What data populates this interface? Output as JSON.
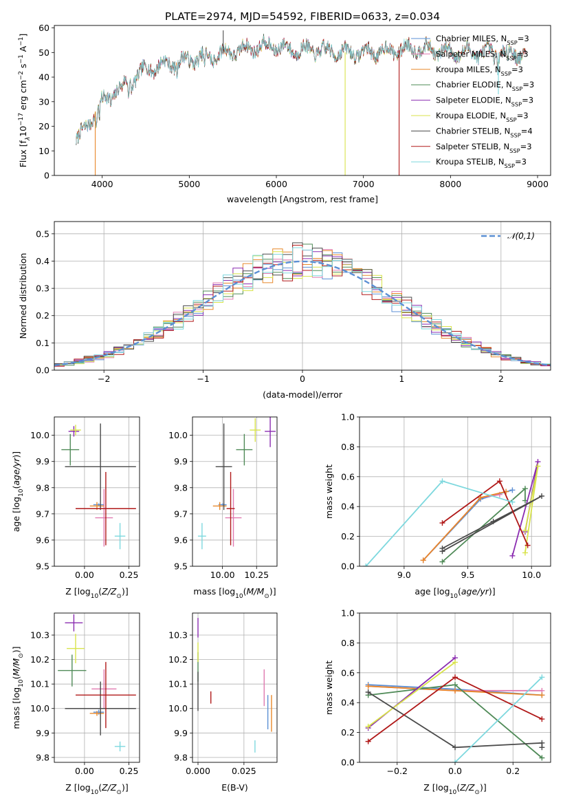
{
  "colors": {
    "Chabrier MILES": "#5b8fd4",
    "Salpeter MILES": "#e07ab0",
    "Kroupa MILES": "#e8882a",
    "Chabrier ELODIE": "#4f8a57",
    "Salpeter ELODIE": "#8a2bb0",
    "Kroupa ELODIE": "#d8e34a",
    "Chabrier STELIB": "#4a4a4a",
    "Salpeter STELIB": "#b01818",
    "Kroupa STELIB": "#7dd8de",
    "gauss": "#5b8fd4"
  },
  "chart_data": [
    {
      "id": "spectrum",
      "type": "line",
      "title": "PLATE=2974, MJD=54592, FIBERID=0633, z=0.034",
      "xlabel": "wavelength [Angstrom, rest frame]",
      "ylabel": "Flux [f_λ 10⁻¹⁷ erg cm⁻² s⁻¹ A⁻¹]",
      "xlim": [
        3450,
        9150
      ],
      "ylim": [
        0,
        61
      ],
      "xticks": [
        "4000",
        "5000",
        "6000",
        "7000",
        "8000",
        "9000"
      ],
      "yticks": [
        "0",
        "10",
        "20",
        "30",
        "40",
        "50",
        "60"
      ],
      "legend_position": "upper-right",
      "legend": [
        "Chabrier MILES, N$_{SSP}$=3",
        "Salpeter MILES, N$_{SSP}$=3",
        "Kroupa MILES, N$_{SSP}$=3",
        "Chabrier ELODIE, N$_{SSP}$=3",
        "Salpeter ELODIE, N$_{SSP}$=3",
        "Kroupa ELODIE, N$_{SSP}$=3",
        "Chabrier STELIB, N$_{SSP}$=4",
        "Salpeter STELIB, N$_{SSP}$=3",
        "Kroupa STELIB, N$_{SSP}$=3"
      ],
      "legend_series": [
        "Chabrier MILES",
        "Salpeter MILES",
        "Kroupa MILES",
        "Chabrier ELODIE",
        "Salpeter ELODIE",
        "Kroupa ELODIE",
        "Chabrier STELIB",
        "Salpeter STELIB",
        "Kroupa STELIB"
      ],
      "continuum": [
        [
          3700,
          15
        ],
        [
          3800,
          18
        ],
        [
          3950,
          28
        ],
        [
          4100,
          33
        ],
        [
          4300,
          38
        ],
        [
          4500,
          43
        ],
        [
          4700,
          45
        ],
        [
          5000,
          47
        ],
        [
          5300,
          49
        ],
        [
          5600,
          51
        ],
        [
          5900,
          53
        ],
        [
          6200,
          51
        ],
        [
          6500,
          51
        ],
        [
          6800,
          50
        ],
        [
          7100,
          50
        ],
        [
          7400,
          51
        ],
        [
          7600,
          52
        ],
        [
          7800,
          51
        ],
        [
          8100,
          50
        ],
        [
          8400,
          50
        ],
        [
          8700,
          50
        ],
        [
          8870,
          49
        ]
      ],
      "features": [
        [
          3933,
          -6
        ],
        [
          3968,
          -5
        ],
        [
          4101,
          -3
        ],
        [
          4226,
          -3
        ],
        [
          4304,
          -5
        ],
        [
          4340,
          -3
        ],
        [
          4861,
          -4
        ],
        [
          5175,
          -6
        ],
        [
          5270,
          -3
        ],
        [
          5890,
          -4
        ],
        [
          6563,
          -3
        ],
        [
          8498,
          -3
        ],
        [
          8542,
          -4
        ],
        [
          8662,
          -4
        ]
      ],
      "spikes": [
        {
          "series": "Chabrier STELIB",
          "x": 5390,
          "y": 59
        },
        {
          "series": "Kroupa MILES",
          "x": 3920,
          "y": 0
        },
        {
          "series": "Kroupa ELODIE",
          "x": 6790,
          "y": 0
        },
        {
          "series": "Salpeter STELIB",
          "x": 7410,
          "y": 0
        },
        {
          "series": "Kroupa STELIB",
          "x": 8550,
          "y": 33
        }
      ],
      "series": [
        "Chabrier MILES",
        "Salpeter MILES",
        "Kroupa MILES",
        "Chabrier ELODIE",
        "Salpeter ELODIE",
        "Kroupa ELODIE",
        "Chabrier STELIB",
        "Salpeter STELIB",
        "Kroupa STELIB"
      ]
    },
    {
      "id": "residuals",
      "type": "histogram",
      "xlabel": "(data-model)/error",
      "ylabel": "Normed distribution",
      "xlim": [
        -2.5,
        2.5
      ],
      "ylim": [
        0,
        0.545
      ],
      "xticks": [
        "-2",
        "-1",
        "0",
        "1",
        "2"
      ],
      "yticks": [
        "0.0",
        "0.1",
        "0.2",
        "0.3",
        "0.4",
        "0.5"
      ],
      "legend_position": "upper-right",
      "legend": [
        "$\\mathcal{N}(0,1)$"
      ],
      "bin_width": 0.1,
      "gaussian": {
        "mean": 0,
        "sigma": 1,
        "style": "dashed"
      },
      "series": [
        "Chabrier MILES",
        "Salpeter MILES",
        "Kroupa MILES",
        "Chabrier ELODIE",
        "Salpeter ELODIE",
        "Kroupa ELODIE",
        "Chabrier STELIB",
        "Salpeter STELIB",
        "Kroupa STELIB"
      ]
    },
    {
      "id": "age_vs_Z",
      "type": "errorbar",
      "xlabel": "Z [log$_{10}$($Z/Z_\\odot$)]",
      "ylabel": "age  [log$_{10}$($age/yr$)]",
      "xlim": [
        -0.17,
        0.31
      ],
      "ylim": [
        9.5,
        10.07
      ],
      "xticks": [
        "0.00",
        "0.25"
      ],
      "yticks": [
        "9.5",
        "9.6",
        "9.7",
        "9.8",
        "9.9",
        "10.0"
      ],
      "points": [
        {
          "series": "Chabrier MILES",
          "x": 0.08,
          "xerr": 0.03,
          "y": 9.735,
          "yerr": 0.005
        },
        {
          "series": "Salpeter MILES",
          "x": 0.11,
          "xerr": 0.05,
          "y": 9.685,
          "yerr": 0.11
        },
        {
          "series": "Kroupa MILES",
          "x": 0.07,
          "xerr": 0.04,
          "y": 9.73,
          "yerr": 0.015
        },
        {
          "series": "Chabrier ELODIE",
          "x": -0.08,
          "xerr": 0.05,
          "y": 9.945,
          "yerr": 0.06
        },
        {
          "series": "Salpeter ELODIE",
          "x": -0.06,
          "xerr": 0.03,
          "y": 10.015,
          "yerr": 0.02
        },
        {
          "series": "Kroupa ELODIE",
          "x": -0.05,
          "xerr": 0.03,
          "y": 10.02,
          "yerr": 0.02
        },
        {
          "series": "Chabrier STELIB",
          "x": 0.09,
          "xerr": 0.2,
          "y": 9.88,
          "yerr": 0.165
        },
        {
          "series": "Salpeter STELIB",
          "x": 0.12,
          "xerr": 0.17,
          "y": 9.72,
          "yerr": 0.14
        },
        {
          "series": "Kroupa STELIB",
          "x": 0.2,
          "xerr": 0.03,
          "y": 9.615,
          "yerr": 0.05
        }
      ]
    },
    {
      "id": "age_vs_mass",
      "type": "errorbar",
      "xlabel": "mass [log$_{10}$($M/M_\\odot$)]",
      "ylabel": "",
      "xlim": [
        9.78,
        10.4
      ],
      "ylim": [
        9.5,
        10.07
      ],
      "xticks": [
        "10.00",
        "10.25"
      ],
      "yticks": [
        "9.5",
        "9.6",
        "9.7",
        "9.8",
        "9.9",
        "10.0"
      ],
      "points": [
        {
          "series": "Chabrier MILES",
          "x": 10.0,
          "xerr": 0.03,
          "y": 9.735,
          "yerr": 0.005
        },
        {
          "series": "Salpeter MILES",
          "x": 10.08,
          "xerr": 0.06,
          "y": 9.685,
          "yerr": 0.11
        },
        {
          "series": "Kroupa MILES",
          "x": 9.98,
          "xerr": 0.05,
          "y": 9.73,
          "yerr": 0.015
        },
        {
          "series": "Chabrier ELODIE",
          "x": 10.16,
          "xerr": 0.06,
          "y": 9.945,
          "yerr": 0.06
        },
        {
          "series": "Salpeter ELODIE",
          "x": 10.35,
          "xerr": 0.04,
          "y": 10.015,
          "yerr": 0.06
        },
        {
          "series": "Kroupa ELODIE",
          "x": 10.24,
          "xerr": 0.04,
          "y": 10.02,
          "yerr": 0.045
        },
        {
          "series": "Chabrier STELIB",
          "x": 10.01,
          "xerr": 0.06,
          "y": 9.88,
          "yerr": 0.165
        },
        {
          "series": "Salpeter STELIB",
          "x": 10.06,
          "xerr": 0.03,
          "y": 9.72,
          "yerr": 0.14
        },
        {
          "series": "Kroupa STELIB",
          "x": 9.85,
          "xerr": 0.03,
          "y": 9.615,
          "yerr": 0.05
        }
      ]
    },
    {
      "id": "weight_vs_age",
      "type": "line",
      "xlabel": "age  [log$_{10}$($age/yr$)]",
      "ylabel": "mass weight",
      "xlim": [
        8.65,
        10.15
      ],
      "ylim": [
        0,
        1
      ],
      "xticks": [
        "9.0",
        "9.5",
        "10.0"
      ],
      "yticks": [
        "0.0",
        "0.2",
        "0.4",
        "0.6",
        "0.8",
        "1.0"
      ],
      "markers": "plus",
      "series": [
        {
          "name": "Chabrier MILES",
          "x": [
            9.15,
            9.6,
            9.85
          ],
          "y": [
            0.04,
            0.45,
            0.51
          ]
        },
        {
          "name": "Salpeter MILES",
          "x": [
            9.15,
            9.6,
            9.75
          ],
          "y": [
            0.04,
            0.46,
            0.48
          ]
        },
        {
          "name": "Kroupa MILES",
          "x": [
            9.15,
            9.6,
            9.8
          ],
          "y": [
            0.04,
            0.46,
            0.5
          ]
        },
        {
          "name": "Chabrier ELODIE",
          "x": [
            9.3,
            9.95,
            9.95
          ],
          "y": [
            0.03,
            0.52,
            0.44
          ]
        },
        {
          "name": "Salpeter ELODIE",
          "x": [
            9.85,
            10.05,
            9.95
          ],
          "y": [
            0.07,
            0.7,
            0.23
          ]
        },
        {
          "name": "Kroupa ELODIE",
          "x": [
            9.95,
            10.05,
            9.95
          ],
          "y": [
            0.09,
            0.67,
            0.24
          ]
        },
        {
          "name": "Chabrier STELIB",
          "x": [
            9.3,
            9.7,
            10.08,
            9.3
          ],
          "y": [
            0.12,
            0.3,
            0.47,
            0.1
          ]
        },
        {
          "name": "Salpeter STELIB",
          "x": [
            9.3,
            9.75,
            9.97
          ],
          "y": [
            0.29,
            0.57,
            0.14
          ]
        },
        {
          "name": "Kroupa STELIB",
          "x": [
            8.7,
            9.3,
            9.85
          ],
          "y": [
            0.0,
            0.57,
            0.43
          ]
        }
      ]
    },
    {
      "id": "mass_vs_Z",
      "type": "errorbar",
      "xlabel": "Z [log$_{10}$($Z/Z_\\odot$)]",
      "ylabel": "mass [log$_{10}$($M/M_\\odot$)]",
      "xlim": [
        -0.17,
        0.31
      ],
      "ylim": [
        9.78,
        10.39
      ],
      "xticks": [
        "0.00",
        "0.25"
      ],
      "yticks": [
        "9.8",
        "9.9",
        "10.0",
        "10.1",
        "10.2",
        "10.3"
      ],
      "points": [
        {
          "series": "Chabrier MILES",
          "x": 0.08,
          "xerr": 0.03,
          "y": 9.985,
          "yerr": 0.01
        },
        {
          "series": "Salpeter MILES",
          "x": 0.11,
          "xerr": 0.07,
          "y": 10.08,
          "yerr": 0.08
        },
        {
          "series": "Kroupa MILES",
          "x": 0.07,
          "xerr": 0.04,
          "y": 9.98,
          "yerr": 0.01
        },
        {
          "series": "Chabrier ELODIE",
          "x": -0.07,
          "xerr": 0.08,
          "y": 10.155,
          "yerr": 0.065
        },
        {
          "series": "Salpeter ELODIE",
          "x": -0.06,
          "xerr": 0.05,
          "y": 10.35,
          "yerr": 0.035
        },
        {
          "series": "Kroupa ELODIE",
          "x": -0.05,
          "xerr": 0.05,
          "y": 10.245,
          "yerr": 0.06
        },
        {
          "series": "Chabrier STELIB",
          "x": 0.09,
          "xerr": 0.2,
          "y": 10.0,
          "yerr": 0.11
        },
        {
          "series": "Salpeter STELIB",
          "x": 0.12,
          "xerr": 0.17,
          "y": 10.055,
          "yerr": 0.135
        },
        {
          "series": "Kroupa STELIB",
          "x": 0.2,
          "xerr": 0.03,
          "y": 9.845,
          "yerr": 0.02
        }
      ]
    },
    {
      "id": "mass_vs_ebv",
      "type": "errorbar",
      "xlabel": "E(B-V)",
      "ylabel": "",
      "xlim": [
        -0.003,
        0.043
      ],
      "ylim": [
        9.78,
        10.39
      ],
      "xticks": [
        "0.000",
        "0.025"
      ],
      "yticks": [
        "9.8",
        "9.9",
        "10.0",
        "10.1",
        "10.2",
        "10.3"
      ],
      "points": [
        {
          "series": "Chabrier MILES",
          "x": 0.038,
          "xerr": 0,
          "y": 9.985,
          "yerr": 0.07
        },
        {
          "series": "Salpeter MILES",
          "x": 0.036,
          "xerr": 0,
          "y": 10.085,
          "yerr": 0.075
        },
        {
          "series": "Kroupa MILES",
          "x": 0.04,
          "xerr": 0,
          "y": 9.98,
          "yerr": 0.075
        },
        {
          "series": "Chabrier ELODIE",
          "x": 0.0,
          "xerr": 0,
          "y": 10.17,
          "yerr": 0.06
        },
        {
          "series": "Salpeter ELODIE",
          "x": 0.0,
          "xerr": 0,
          "y": 10.33,
          "yerr": 0.04
        },
        {
          "series": "Kroupa ELODIE",
          "x": 0.0,
          "xerr": 0,
          "y": 10.23,
          "yerr": 0.04
        },
        {
          "series": "Chabrier STELIB",
          "x": 0.0,
          "xerr": 0,
          "y": 10.07,
          "yerr": 0.08
        },
        {
          "series": "Salpeter STELIB",
          "x": 0.007,
          "xerr": 0,
          "y": 10.045,
          "yerr": 0.025
        },
        {
          "series": "Kroupa STELIB",
          "x": 0.031,
          "xerr": 0,
          "y": 9.845,
          "yerr": 0.025
        }
      ]
    },
    {
      "id": "weight_vs_Z",
      "type": "line",
      "xlabel": "Z [log$_{10}$($Z/Z_\\odot$)]",
      "ylabel": "mass weight",
      "xlim": [
        -0.33,
        0.33
      ],
      "ylim": [
        0,
        1
      ],
      "xticks": [
        "-0.2",
        "0.0",
        "0.2"
      ],
      "yticks": [
        "0.0",
        "0.2",
        "0.4",
        "0.6",
        "0.8",
        "1.0"
      ],
      "markers": "plus",
      "series": [
        {
          "name": "Chabrier MILES",
          "x": [
            -0.3,
            0.0,
            0.3
          ],
          "y": [
            0.52,
            0.49,
            0.45
          ]
        },
        {
          "name": "Salpeter MILES",
          "x": [
            -0.3,
            0.0,
            0.3
          ],
          "y": [
            0.51,
            0.48,
            0.48
          ]
        },
        {
          "name": "Kroupa MILES",
          "x": [
            -0.3,
            0.0,
            0.3
          ],
          "y": [
            0.51,
            0.48,
            0.45
          ]
        },
        {
          "name": "Chabrier ELODIE",
          "x": [
            -0.3,
            0.0,
            0.3
          ],
          "y": [
            0.45,
            0.52,
            0.03
          ]
        },
        {
          "name": "Salpeter ELODIE",
          "x": [
            -0.3,
            0.0
          ],
          "y": [
            0.23,
            0.7
          ]
        },
        {
          "name": "Kroupa ELODIE",
          "x": [
            -0.3,
            0.0
          ],
          "y": [
            0.24,
            0.67
          ]
        },
        {
          "name": "Chabrier STELIB",
          "x": [
            -0.3,
            0.0,
            0.3,
            0.3
          ],
          "y": [
            0.47,
            0.1,
            0.13,
            0.1
          ]
        },
        {
          "name": "Salpeter STELIB",
          "x": [
            -0.3,
            0.0,
            0.3
          ],
          "y": [
            0.14,
            0.57,
            0.29
          ]
        },
        {
          "name": "Kroupa STELIB",
          "x": [
            0.0,
            0.3
          ],
          "y": [
            0.0,
            0.57
          ]
        }
      ]
    }
  ]
}
